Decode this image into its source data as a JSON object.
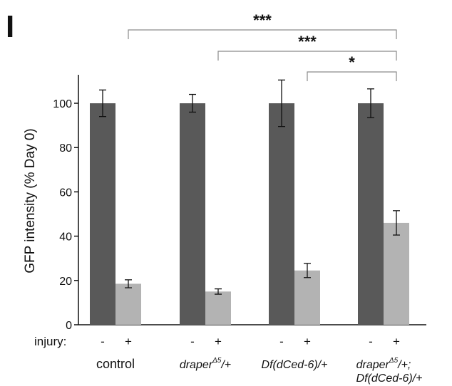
{
  "chart_data": {
    "type": "bar",
    "panel_label": "I",
    "ylabel": "GFP intensity (% Day 0)",
    "ylim": [
      0,
      110
    ],
    "yticks": [
      0,
      20,
      40,
      60,
      80,
      100
    ],
    "ytick_labels": [
      "0",
      "20",
      "40",
      "60",
      "80",
      "100"
    ],
    "x_row_label": "injury:",
    "groups": [
      {
        "label_main": "control",
        "label_sup": "",
        "label_tail": "",
        "label_line2": "",
        "style": "plain",
        "bars": [
          {
            "condition": "-",
            "value": 100,
            "err": 6,
            "color": "#595959"
          },
          {
            "condition": "+",
            "value": 18.5,
            "err": 1.8,
            "color": "#b3b3b3"
          }
        ]
      },
      {
        "label_main": "draper",
        "label_sup": "Δ5",
        "label_tail": "/+",
        "label_line2": "",
        "style": "italic",
        "bars": [
          {
            "condition": "-",
            "value": 100,
            "err": 4,
            "color": "#595959"
          },
          {
            "condition": "+",
            "value": 15,
            "err": 1.2,
            "color": "#b3b3b3"
          }
        ]
      },
      {
        "label_main": "Df(dCed-6)/+",
        "label_sup": "",
        "label_tail": "",
        "label_line2": "",
        "style": "italic",
        "bars": [
          {
            "condition": "-",
            "value": 100,
            "err": 10.5,
            "color": "#595959"
          },
          {
            "condition": "+",
            "value": 24.5,
            "err": 3.2,
            "color": "#b3b3b3"
          }
        ]
      },
      {
        "label_main": "draper",
        "label_sup": "Δ5",
        "label_tail": "/+;",
        "label_line2": "Df(dCed-6)/+",
        "style": "italic",
        "bars": [
          {
            "condition": "-",
            "value": 100,
            "err": 6.5,
            "color": "#595959"
          },
          {
            "condition": "+",
            "value": 46,
            "err": 5.5,
            "color": "#b3b3b3"
          }
        ]
      }
    ],
    "significance": [
      {
        "from_group": 0,
        "to_group": 3,
        "label": "***"
      },
      {
        "from_group": 1,
        "to_group": 3,
        "label": "***"
      },
      {
        "from_group": 2,
        "to_group": 3,
        "label": "*"
      }
    ]
  }
}
